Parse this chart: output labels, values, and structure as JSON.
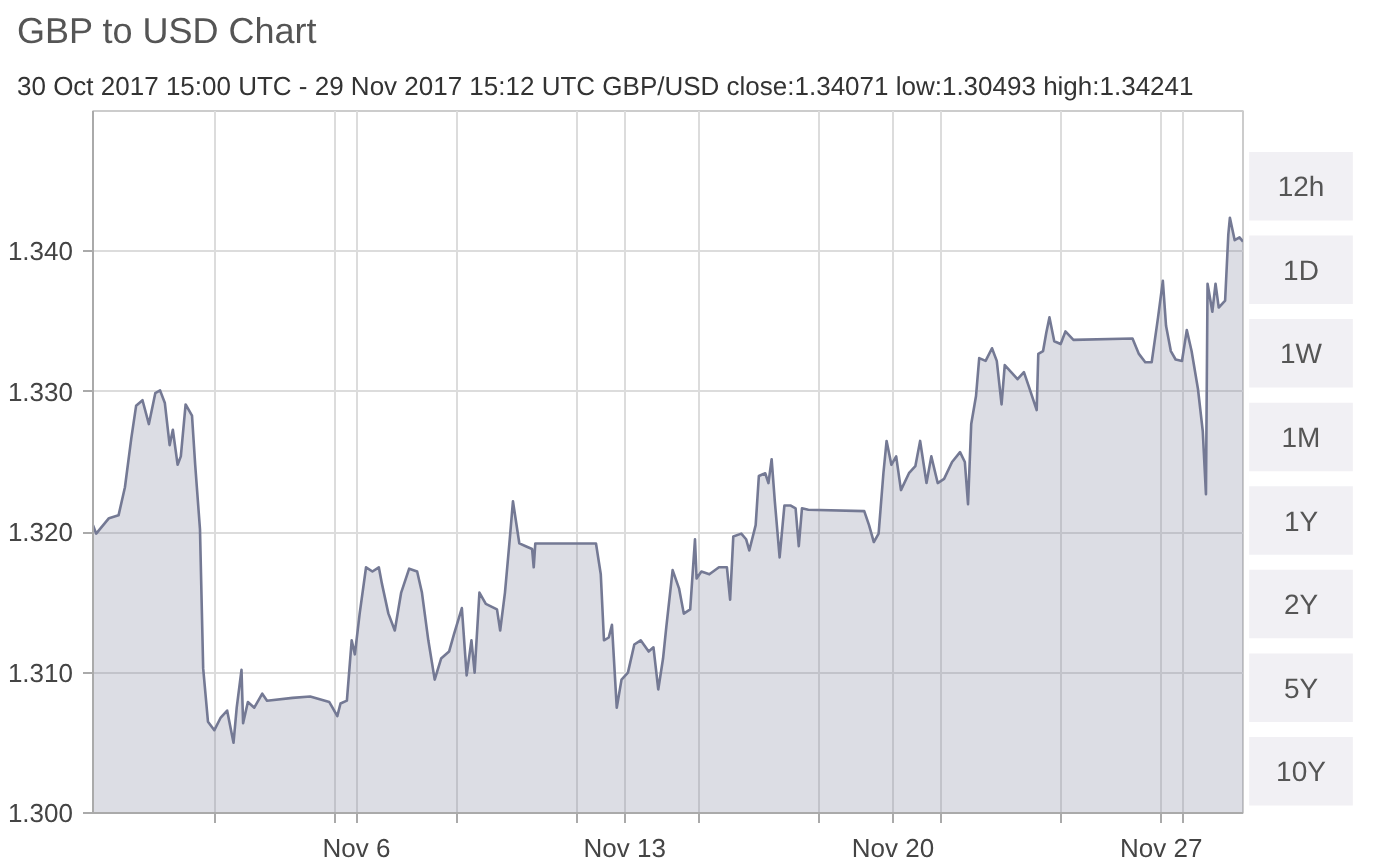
{
  "chart_data": {
    "type": "area",
    "title": "GBP to USD Chart",
    "subtitle": "30 Oct 2017 15:00 UTC - 29 Nov 2017 15:12 UTC GBP/USD close:1.34071 low:1.30493 high:1.34241",
    "annotations": [
      "12h",
      "1D",
      "1W",
      "1M",
      "1Y",
      "2Y",
      "5Y",
      "10Y"
    ],
    "color": "#747994",
    "grid": true,
    "xlim": [
      "2017-10-30T15:00",
      "2017-11-29T15:12"
    ],
    "xticks": [
      {
        "value": "2017-11-02T18:47",
        "label": null
      },
      {
        "value": "2017-11-05T22:40",
        "label": null
      },
      {
        "value": "2017-11-06T12:00",
        "label": "Nov 6"
      },
      {
        "value": "2017-11-09T02:31",
        "label": null
      },
      {
        "value": "2017-11-12T06:23",
        "label": null
      },
      {
        "value": "2017-11-13T12:00",
        "label": "Nov 13"
      },
      {
        "value": "2017-11-15T10:15",
        "label": null
      },
      {
        "value": "2017-11-18T14:06",
        "label": null
      },
      {
        "value": "2017-11-20T12:00",
        "label": "Nov 20"
      },
      {
        "value": "2017-11-21T17:58",
        "label": null
      },
      {
        "value": "2017-11-24T21:50",
        "label": null
      },
      {
        "value": "2017-11-27T12:00",
        "label": "Nov 27"
      },
      {
        "value": "2017-11-28T01:42",
        "label": null
      }
    ],
    "ylim": [
      1.3,
      1.35
    ],
    "yticks": [
      {
        "value": 1.3,
        "label": "1.300"
      },
      {
        "value": 1.31,
        "label": "1.310"
      },
      {
        "value": 1.32,
        "label": "1.320"
      },
      {
        "value": 1.33,
        "label": "1.330"
      },
      {
        "value": 1.34,
        "label": "1.340"
      }
    ],
    "x": [
      "2017-10-30T15:00",
      "2017-10-30T17:00",
      "2017-10-31T01:00",
      "2017-10-31T07:00",
      "2017-10-31T11:00",
      "2017-10-31T15:00",
      "2017-10-31T18:00",
      "2017-10-31T22:00",
      "2017-11-01T02:00",
      "2017-11-01T06:00",
      "2017-11-01T09:00",
      "2017-11-01T12:00",
      "2017-11-01T15:00",
      "2017-11-01T17:00",
      "2017-11-01T20:00",
      "2017-11-01T22:00",
      "2017-11-02T01:00",
      "2017-11-02T05:00",
      "2017-11-02T07:00",
      "2017-11-02T10:00",
      "2017-11-02T12:00",
      "2017-11-02T15:00",
      "2017-11-02T19:00",
      "2017-11-02T23:00",
      "2017-11-03T03:00",
      "2017-11-03T07:00",
      "2017-11-03T09:00",
      "2017-11-03T12:00",
      "2017-11-03T13:00",
      "2017-11-03T16:00",
      "2017-11-03T20:00",
      "2017-11-04T01:00",
      "2017-11-04T04:00",
      "2017-11-04T20:00",
      "2017-11-05T07:00",
      "2017-11-05T19:00",
      "2017-11-05T21:00",
      "2017-11-06T00:00",
      "2017-11-06T02:00",
      "2017-11-06T06:00",
      "2017-11-06T09:00",
      "2017-11-06T11:00",
      "2017-11-06T14:00",
      "2017-11-06T18:00",
      "2017-11-06T22:00",
      "2017-11-07T02:00",
      "2017-11-07T04:00",
      "2017-11-07T08:00",
      "2017-11-07T12:00",
      "2017-11-07T16:00",
      "2017-11-07T21:00",
      "2017-11-08T02:00",
      "2017-11-08T05:00",
      "2017-11-08T09:00",
      "2017-11-08T13:00",
      "2017-11-08T17:00",
      "2017-11-08T22:00",
      "2017-11-09T01:00",
      "2017-11-09T06:00",
      "2017-11-09T09:00",
      "2017-11-09T12:00",
      "2017-11-09T14:00",
      "2017-11-09T17:00",
      "2017-11-09T21:00",
      "2017-11-10T04:00",
      "2017-11-10T06:00",
      "2017-11-10T09:00",
      "2017-11-10T12:00",
      "2017-11-10T14:00",
      "2017-11-10T18:00",
      "2017-11-10T22:00",
      "2017-11-11T02:00",
      "2017-11-11T03:00",
      "2017-11-11T04:00",
      "2017-11-12T18:00",
      "2017-11-12T21:00",
      "2017-11-12T23:00",
      "2017-11-13T02:00",
      "2017-11-13T04:00",
      "2017-11-13T07:00",
      "2017-11-13T10:00",
      "2017-11-13T14:00",
      "2017-11-13T18:00",
      "2017-11-13T22:00",
      "2017-11-14T03:00",
      "2017-11-14T06:00",
      "2017-11-14T09:00",
      "2017-11-14T12:00",
      "2017-11-14T14:00",
      "2017-11-14T18:00",
      "2017-11-14T22:00",
      "2017-11-15T01:00",
      "2017-11-15T05:00",
      "2017-11-15T08:00",
      "2017-11-15T09:00",
      "2017-11-15T12:00",
      "2017-11-15T17:00",
      "2017-11-15T23:00",
      "2017-11-16T04:00",
      "2017-11-16T06:00",
      "2017-11-16T08:00",
      "2017-11-16T13:00",
      "2017-11-16T16:00",
      "2017-11-16T18:00",
      "2017-11-16T22:00",
      "2017-11-17T00:00",
      "2017-11-17T04:00",
      "2017-11-17T06:00",
      "2017-11-17T08:00",
      "2017-11-17T10:00",
      "2017-11-17T13:00",
      "2017-11-17T16:00",
      "2017-11-17T20:00",
      "2017-11-17T23:00",
      "2017-11-18T01:00",
      "2017-11-18T03:00",
      "2017-11-18T07:00",
      "2017-11-19T18:00",
      "2017-11-19T21:00",
      "2017-11-20T00:00",
      "2017-11-20T03:00",
      "2017-11-20T06:00",
      "2017-11-20T08:00",
      "2017-11-20T11:00",
      "2017-11-20T14:00",
      "2017-11-20T17:00",
      "2017-11-20T22:00",
      "2017-11-21T02:00",
      "2017-11-21T05:00",
      "2017-11-21T09:00",
      "2017-11-21T12:00",
      "2017-11-21T16:00",
      "2017-11-21T20:00",
      "2017-11-22T01:00",
      "2017-11-22T06:00",
      "2017-11-22T09:00",
      "2017-11-22T11:00",
      "2017-11-22T13:00",
      "2017-11-22T16:00",
      "2017-11-22T18:00",
      "2017-11-22T22:00",
      "2017-11-23T02:00",
      "2017-11-23T05:00",
      "2017-11-23T08:00",
      "2017-11-23T10:00",
      "2017-11-23T14:00",
      "2017-11-23T18:00",
      "2017-11-23T22:00",
      "2017-11-24T01:00",
      "2017-11-24T06:00",
      "2017-11-24T07:00",
      "2017-11-24T10:00",
      "2017-11-24T12:00",
      "2017-11-24T14:00",
      "2017-11-24T17:00",
      "2017-11-24T21:00",
      "2017-11-25T00:00",
      "2017-11-25T05:00",
      "2017-11-26T18:00",
      "2017-11-26T22:00",
      "2017-11-27T02:00",
      "2017-11-27T06:00",
      "2017-11-27T10:00",
      "2017-11-27T13:00",
      "2017-11-27T15:00",
      "2017-11-27T18:00",
      "2017-11-27T21:00",
      "2017-11-28T01:00",
      "2017-11-28T04:00",
      "2017-11-28T07:00",
      "2017-11-28T11:00",
      "2017-11-28T14:00",
      "2017-11-28T16:00",
      "2017-11-28T17:00",
      "2017-11-28T20:00",
      "2017-11-28T22:00",
      "2017-11-29T00:00",
      "2017-11-29T04:00",
      "2017-11-29T06:00",
      "2017-11-29T07:00",
      "2017-11-29T10:00",
      "2017-11-29T13:00",
      "2017-11-29T15:12"
    ],
    "values": [
      1.3205,
      1.3199,
      1.321,
      1.3212,
      1.3232,
      1.3267,
      1.329,
      1.3294,
      1.3277,
      1.3299,
      1.3301,
      1.3292,
      1.3262,
      1.3273,
      1.3248,
      1.3254,
      1.3291,
      1.3283,
      1.3248,
      1.3202,
      1.3103,
      1.3065,
      1.3059,
      1.3068,
      1.3073,
      1.305,
      1.3075,
      1.3102,
      1.3064,
      1.3079,
      1.3075,
      1.3085,
      1.308,
      1.3082,
      1.3083,
      1.3079,
      1.3075,
      1.3069,
      1.3078,
      1.308,
      1.3123,
      1.3113,
      1.3142,
      1.3175,
      1.3172,
      1.3175,
      1.3163,
      1.3142,
      1.313,
      1.3157,
      1.3174,
      1.3172,
      1.3157,
      1.3123,
      1.3095,
      1.311,
      1.3115,
      1.3127,
      1.3146,
      1.3098,
      1.3123,
      1.31,
      1.3157,
      1.3149,
      1.3145,
      1.313,
      1.3157,
      1.3195,
      1.3222,
      1.3192,
      1.319,
      1.3188,
      1.3175,
      1.3192,
      1.3192,
      1.317,
      1.3123,
      1.3125,
      1.3134,
      1.3075,
      1.3095,
      1.31,
      1.312,
      1.3123,
      1.3115,
      1.3118,
      1.3088,
      1.311,
      1.3132,
      1.3173,
      1.316,
      1.3142,
      1.3145,
      1.3195,
      1.3167,
      1.3172,
      1.317,
      1.3175,
      1.3175,
      1.3152,
      1.3197,
      1.3199,
      1.3195,
      1.3187,
      1.3205,
      1.324,
      1.3242,
      1.3235,
      1.3252,
      1.3222,
      1.3182,
      1.3219,
      1.3219,
      1.3217,
      1.319,
      1.3217,
      1.3216,
      1.3215,
      1.3205,
      1.3193,
      1.3199,
      1.3242,
      1.3265,
      1.3248,
      1.3254,
      1.323,
      1.3242,
      1.3247,
      1.3265,
      1.3235,
      1.3254,
      1.3235,
      1.3238,
      1.325,
      1.3257,
      1.325,
      1.322,
      1.3277,
      1.3297,
      1.3324,
      1.3322,
      1.3331,
      1.3322,
      1.3291,
      1.3319,
      1.3314,
      1.3309,
      1.3314,
      1.3304,
      1.3287,
      1.3327,
      1.3329,
      1.3342,
      1.3353,
      1.3336,
      1.3334,
      1.3343,
      1.3337,
      1.3338,
      1.3327,
      1.3321,
      1.3321,
      1.3353,
      1.3379,
      1.3347,
      1.3329,
      1.3323,
      1.3322,
      1.3344,
      1.3329,
      1.3302,
      1.3272,
      1.3227,
      1.3377,
      1.3357,
      1.3377,
      1.336,
      1.3365,
      1.3412,
      1.3424,
      1.3408,
      1.341,
      1.3407
    ]
  }
}
